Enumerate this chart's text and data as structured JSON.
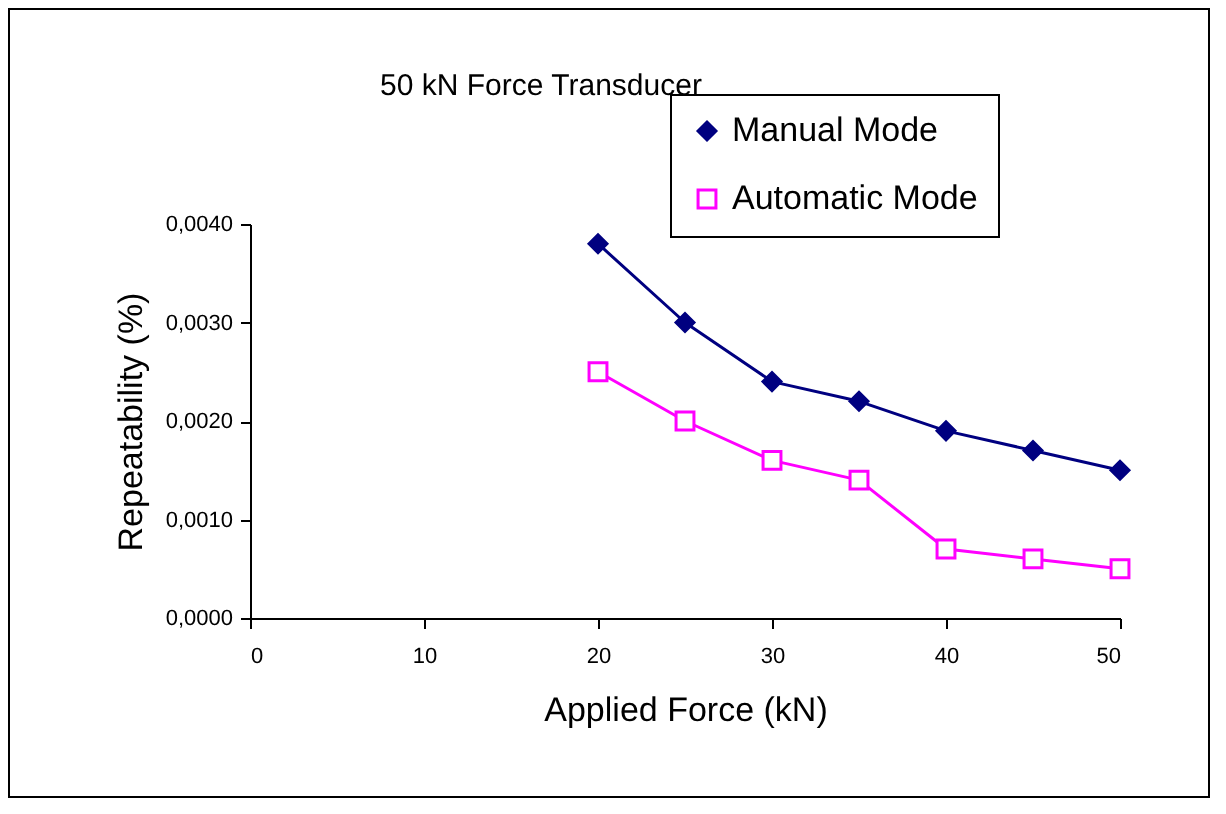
{
  "chart_data": {
    "type": "line",
    "title": "50 kN Force Transducer",
    "xlabel": "Applied Force (kN)",
    "ylabel": "Repeatability (%)",
    "x": [
      20,
      25,
      30,
      35,
      40,
      45,
      50
    ],
    "series": [
      {
        "name": "Manual Mode",
        "color": "#000080",
        "marker": "diamond",
        "values": [
          0.0038,
          0.003,
          0.0024,
          0.0022,
          0.0019,
          0.0017,
          0.0015
        ]
      },
      {
        "name": "Automatic Mode",
        "color": "#ff00ff",
        "marker": "square",
        "values": [
          0.0025,
          0.002,
          0.0016,
          0.0014,
          0.0007,
          0.0006,
          0.0005
        ]
      }
    ],
    "xlim": [
      0,
      50
    ],
    "xticks": [
      0,
      10,
      20,
      30,
      40,
      50
    ],
    "ylim": [
      0,
      0.004
    ],
    "yticks": [
      {
        "value": 0,
        "label": "0,0000"
      },
      {
        "value": 0.001,
        "label": "0,0010"
      },
      {
        "value": 0.002,
        "label": "0,0020"
      },
      {
        "value": 0.003,
        "label": "0,0030"
      },
      {
        "value": 0.004,
        "label": "0,0040"
      }
    ],
    "grid": false,
    "legend": "top right"
  }
}
